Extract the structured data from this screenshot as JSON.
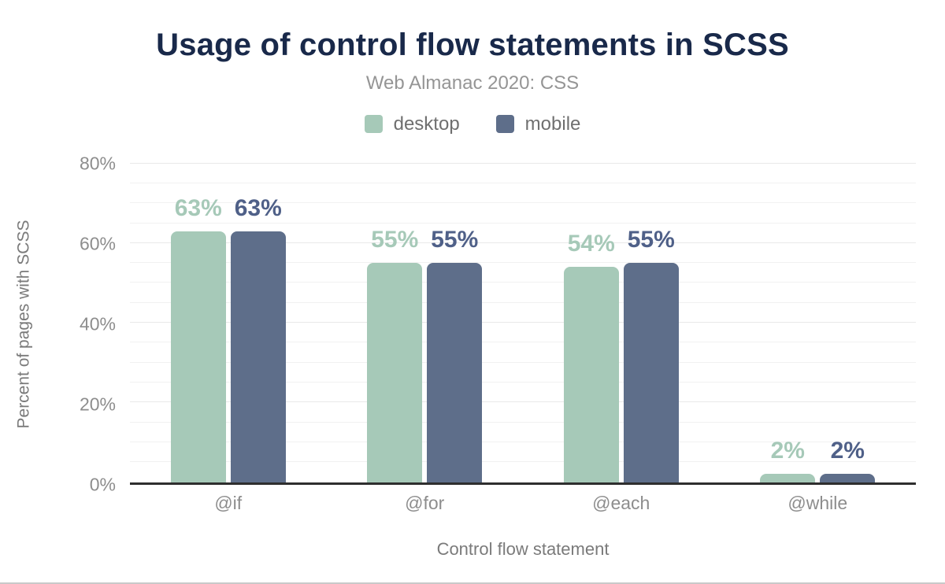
{
  "chart_data": {
    "type": "bar",
    "title": "Usage of control flow statements in SCSS",
    "subtitle": "Web Almanac 2020: CSS",
    "categories": [
      "@if",
      "@for",
      "@each",
      "@while"
    ],
    "series": [
      {
        "name": "desktop",
        "values": [
          63,
          55,
          54,
          2
        ],
        "labels": [
          "63%",
          "55%",
          "54%",
          "2%"
        ],
        "color": "#a6c9b8",
        "label_color": "#a6c9b8"
      },
      {
        "name": "mobile",
        "values": [
          63,
          55,
          55,
          2
        ],
        "labels": [
          "63%",
          "55%",
          "55%",
          "2%"
        ],
        "color": "#5e6e8a",
        "label_color": "#4f6088"
      }
    ],
    "xlabel": "Control flow statement",
    "ylabel": "Percent of pages with SCSS",
    "ylim": [
      0,
      80
    ],
    "yticks": [
      0,
      20,
      40,
      60,
      80
    ],
    "ytick_labels": [
      "0%",
      "20%",
      "40%",
      "60%",
      "80%"
    ],
    "minor_grid_step": 5,
    "grid": true,
    "legend_position": "top"
  },
  "theme": {
    "title_color": "#19294a",
    "subtitle_color": "#959595",
    "legend_text_color": "#6f6f6f",
    "tick_text_color": "#8d8d8d",
    "axis_title_color": "#7a7a7a",
    "gridline_color": "#f1f1f1",
    "axis_line_color": "#2e2e2e",
    "desktop_color": "#a6c9b8",
    "mobile_color": "#5e6e8a"
  }
}
